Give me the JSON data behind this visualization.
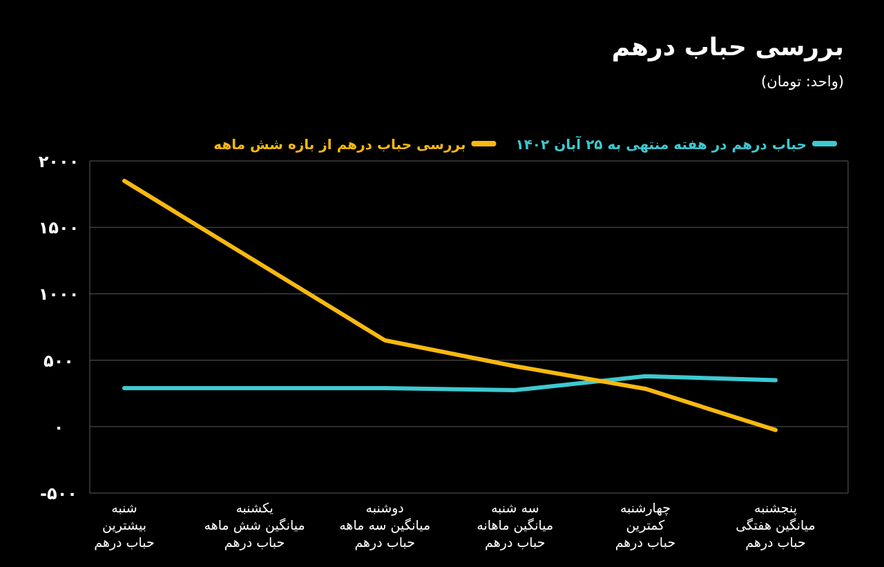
{
  "chart_data": {
    "type": "line",
    "title": "بررسی  حباب درهم",
    "subtitle": "(واحد: تومان)",
    "categories": [
      "شنبه\nبیشترین\nحباب درهم",
      "یکشنبه\nمیانگین شش ماهه\nحباب درهم",
      "دوشنبه\nمیانگین سه ماهه\nحباب درهم",
      "سه شنبه\nمیانگین ماهانه\nحباب درهم",
      "چهارشنبه\nکمترین\nحباب درهم",
      "پنجشنبه\nمیانگین هفتگی\nحباب درهم"
    ],
    "series": [
      {
        "name": "حباب درهم در هفته منتهی  به ۲۵ آبان ۱۴۰۲",
        "color": "#3ec9d1",
        "values": [
          290,
          null,
          290,
          275,
          380,
          350
        ]
      },
      {
        "name": "بررسی حباب درهم از بازه شش ماهه",
        "color": "#f7b90f",
        "values": [
          1850,
          null,
          650,
          455,
          285,
          -25
        ]
      }
    ],
    "ylim": [
      -500,
      2000
    ],
    "yticks": [
      {
        "value": -500,
        "label": "-۵۰۰"
      },
      {
        "value": 0,
        "label": "۰"
      },
      {
        "value": 500,
        "label": "۵۰۰"
      },
      {
        "value": 1000,
        "label": "۱۰۰۰"
      },
      {
        "value": 1500,
        "label": "۱۵۰۰"
      },
      {
        "value": 2000,
        "label": "۲۰۰۰"
      }
    ],
    "grid": "y",
    "legend": "top",
    "marker": "none",
    "line_style": "solid"
  }
}
